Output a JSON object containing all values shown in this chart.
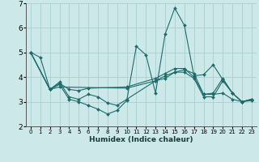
{
  "xlabel": "Humidex (Indice chaleur)",
  "xlim": [
    -0.5,
    23.5
  ],
  "ylim": [
    2,
    7
  ],
  "yticks": [
    2,
    3,
    4,
    5,
    6,
    7
  ],
  "xticks": [
    0,
    1,
    2,
    3,
    4,
    5,
    6,
    7,
    8,
    9,
    10,
    11,
    12,
    13,
    14,
    15,
    16,
    17,
    18,
    19,
    20,
    21,
    22,
    23
  ],
  "bg_color": "#cce8e8",
  "grid_color": "#aacfcf",
  "line_color": "#1e6b6b",
  "lines": [
    {
      "x": [
        0,
        1,
        2,
        3,
        4,
        5,
        6,
        7,
        8,
        9,
        10,
        11,
        12,
        13,
        14,
        15,
        16,
        17,
        18,
        19,
        20,
        21,
        22,
        23
      ],
      "y": [
        5.0,
        4.8,
        3.5,
        3.7,
        3.1,
        3.0,
        2.85,
        2.7,
        2.5,
        2.65,
        3.05,
        5.25,
        4.9,
        3.35,
        5.75,
        6.8,
        6.1,
        4.05,
        4.1,
        4.5,
        3.9,
        3.35,
        3.0,
        3.05
      ]
    },
    {
      "x": [
        0,
        2,
        3,
        10,
        13,
        14,
        15,
        16,
        17,
        18,
        19,
        20,
        21,
        22,
        23
      ],
      "y": [
        5.0,
        3.5,
        3.6,
        3.55,
        3.85,
        4.05,
        4.2,
        4.3,
        4.15,
        3.3,
        3.3,
        3.35,
        3.1,
        3.0,
        3.1
      ]
    },
    {
      "x": [
        0,
        2,
        3,
        4,
        5,
        6,
        10,
        13,
        14,
        15,
        16,
        17,
        18,
        19,
        20,
        21,
        22,
        23
      ],
      "y": [
        5.0,
        3.5,
        3.75,
        3.5,
        3.45,
        3.55,
        3.6,
        3.95,
        4.15,
        4.35,
        4.35,
        4.0,
        3.3,
        3.35,
        3.95,
        3.35,
        3.0,
        3.1
      ]
    },
    {
      "x": [
        0,
        2,
        3,
        4,
        5,
        6,
        7,
        8,
        9,
        10,
        13,
        14,
        15,
        16,
        17,
        18,
        19,
        20,
        21,
        22,
        23
      ],
      "y": [
        5.0,
        3.5,
        3.8,
        3.2,
        3.1,
        3.3,
        3.2,
        2.95,
        2.85,
        3.1,
        3.85,
        3.95,
        4.2,
        4.2,
        3.95,
        3.2,
        3.2,
        3.85,
        3.35,
        3.0,
        3.1
      ]
    }
  ]
}
